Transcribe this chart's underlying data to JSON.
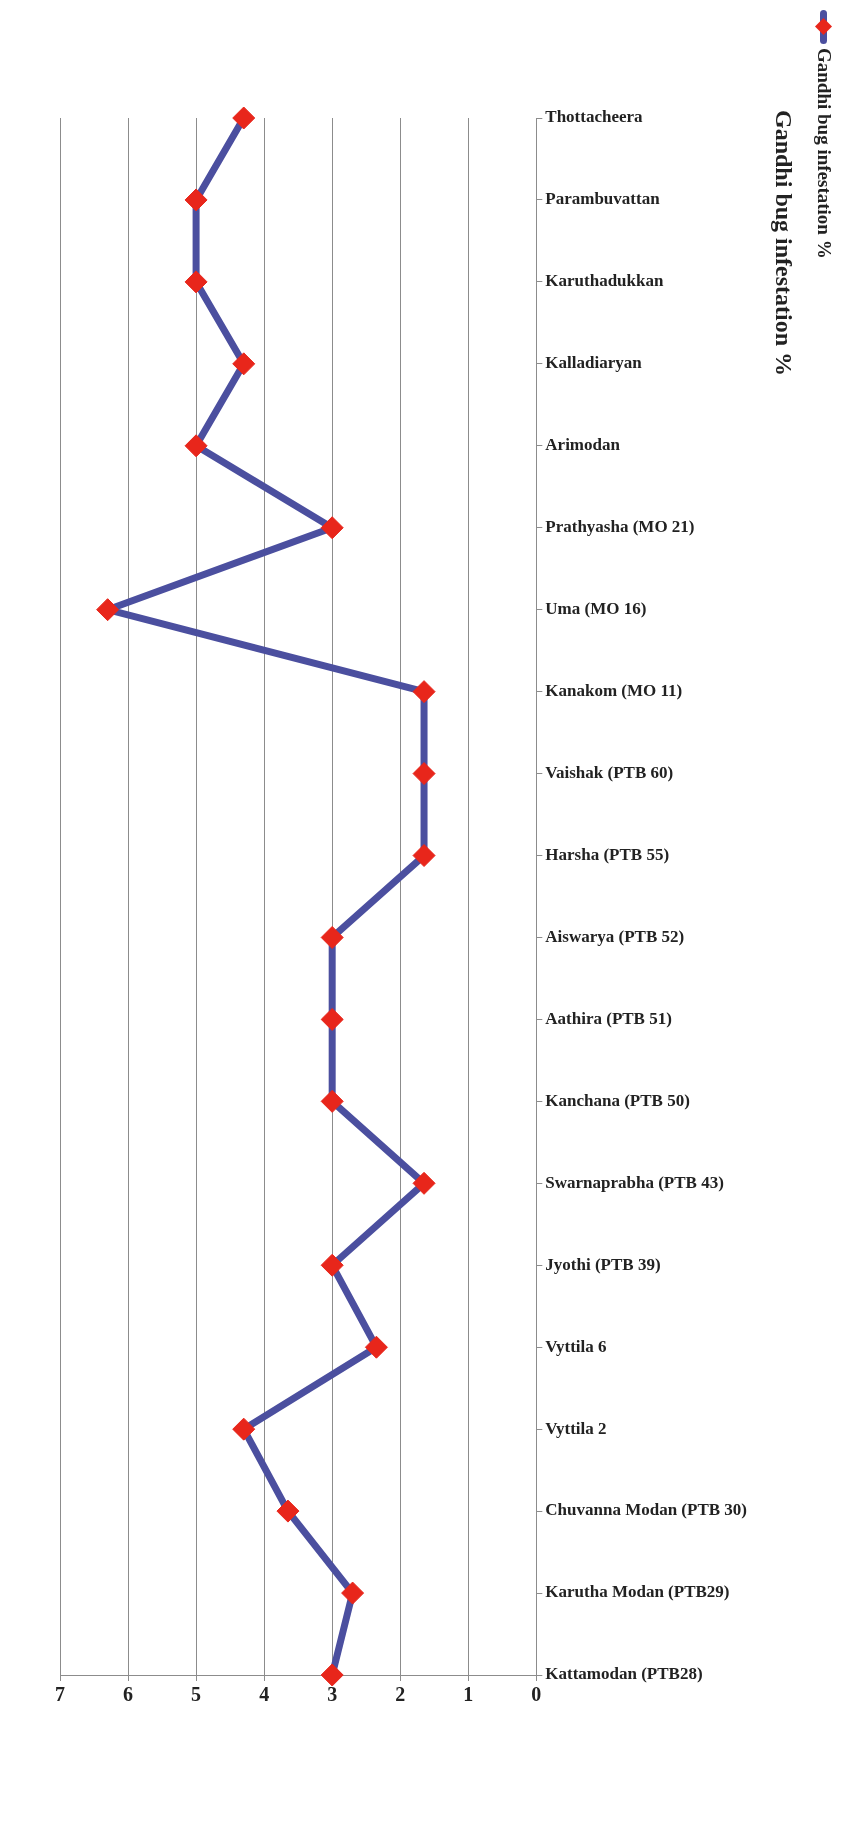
{
  "chart_data": {
    "type": "line",
    "title": "Gandhi bug infestation %",
    "orientation": "horizontal",
    "categories": [
      "Thottacheera",
      "Parambuvattan",
      "Karuthadukkan",
      "Kalladiaryan",
      "Arimodan",
      "Prathyasha (MO 21)",
      "Uma (MO 16)",
      "Kanakom (MO 11)",
      "Vaishak (PTB 60)",
      "Harsha (PTB 55)",
      "Aiswarya (PTB 52)",
      "Aathira (PTB 51)",
      "Kanchana (PTB 50)",
      "Swarnaprabha (PTB 43)",
      "Jyothi (PTB 39)",
      "Vyttila 6",
      "Vyttila 2",
      "Chuvanna Modan (PTB 30)",
      "Karutha Modan (PTB29)",
      "Kattamodan (PTB28)"
    ],
    "series": [
      {
        "name": "Gandhi bug infestation %",
        "color": "#4b4f9f",
        "colors": [
          "#e8261b",
          "#e8261b",
          "#e8261b",
          "#e8261b",
          "#e8261b",
          "#e8261b",
          "#e8261b",
          "#e8261b",
          "#e8261b",
          "#e8261b",
          "#e8261b",
          "#e8261b",
          "#e8261b",
          "#e8261b",
          "#e8261b",
          "#e8261b",
          "#e8261b",
          "#e8261b",
          "#e8261b",
          "#e8261b"
        ],
        "values": [
          4.3,
          5.0,
          5.0,
          4.3,
          5.0,
          3.0,
          6.3,
          1.65,
          1.65,
          1.65,
          3.0,
          3.0,
          3.0,
          1.65,
          3.0,
          2.35,
          4.3,
          3.65,
          2.7,
          3.0
        ]
      }
    ],
    "xlim": [
      7,
      0
    ],
    "xticks": [
      7,
      6,
      5,
      4,
      3,
      2,
      1,
      0
    ],
    "grid": "x",
    "legend": "top right",
    "marker": "diamond",
    "line_style": "solid"
  }
}
